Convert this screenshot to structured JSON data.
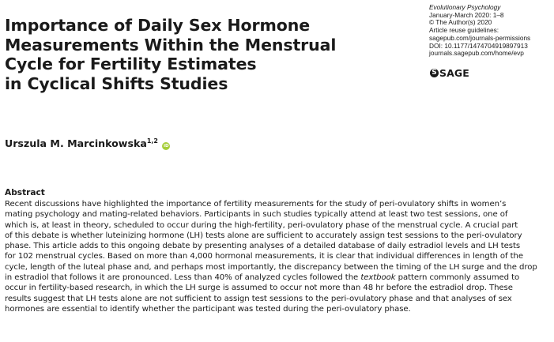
{
  "title_lines": [
    "Importance of Daily Sex Hormone",
    "Measurements Within the Menstrual",
    "Cycle for Fertility Estimates",
    "in Cyclical Shifts Studies"
  ],
  "meta": {
    "journal": "Evolutionary Psychology",
    "issue": "January-March 2020: 1–8",
    "copyright": "© The Author(s) 2020",
    "reuse_label": "Article reuse guidelines:",
    "reuse_link": "sagepub.com/journals-permissions",
    "doi": "DOI: 10.1177/1474704919897913",
    "home_link": "journals.sagepub.com/home/evp",
    "publisher_logo": "SAGE",
    "publisher_mark": "S"
  },
  "author": {
    "name": "Urszula M. Marcinkowska",
    "affiliations": "1,2",
    "orcid_icon": "orcid-icon",
    "orcid_label": "iD"
  },
  "abstract": {
    "heading": "Abstract",
    "lines": [
      "Recent discussions have highlighted the importance of fertility measurements for the study of peri-ovulatory shifts in women’s",
      "mating psychology and mating-related behaviors. Participants in such studies typically attend at least two test sessions, one of",
      "which is, at least in theory, scheduled to occur during the high-fertility, peri-ovulatory phase of the menstrual cycle. A crucial part",
      "of this debate is whether luteinizing hormone (LH) tests alone are sufficient to accurately assign test sessions to the peri-ovulatory",
      "phase. This article adds to this ongoing debate by presenting analyses of a detailed database of daily estradiol levels and LH tests",
      "for 102 menstrual cycles. Based on more than 4,000 hormonal measurements, it is clear that individual differences in length of the",
      "cycle, length of the luteal phase and, and perhaps most importantly, the discrepancy between the timing of the LH surge and the drop",
      "in estradiol that follows it are pronounced. Less than 40% of analyzed cycles followed the ",
      "occur in fertility-based research, in which the LH surge is assumed to occur not more than 48 hr before the estradiol drop. These",
      "results suggest that LH tests alone are not sufficient to assign test sessions to the peri-ovulatory phase and that analyses of sex",
      "hormones are essential to identify whether the participant was tested during the peri-ovulatory phase."
    ],
    "line8_italic": "textbook",
    "line8_tail": " pattern commonly assumed to"
  }
}
